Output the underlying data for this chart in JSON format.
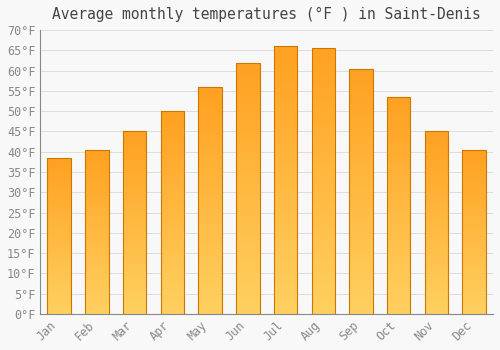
{
  "title": "Average monthly temperatures (°F ) in Saint-Denis",
  "months": [
    "Jan",
    "Feb",
    "Mar",
    "Apr",
    "May",
    "Jun",
    "Jul",
    "Aug",
    "Sep",
    "Oct",
    "Nov",
    "Dec"
  ],
  "values": [
    38.5,
    40.5,
    45.0,
    50.0,
    56.0,
    62.0,
    66.0,
    65.5,
    60.5,
    53.5,
    45.0,
    40.5
  ],
  "bar_color_bottom": "#FFD060",
  "bar_color_top": "#FFA020",
  "bar_edge_color": "#CC7700",
  "ylim": [
    0,
    70
  ],
  "ytick_step": 5,
  "background_color": "#f8f8f8",
  "grid_color": "#dddddd",
  "title_fontsize": 10.5,
  "tick_fontsize": 8.5,
  "tick_color": "#888888",
  "title_color": "#444444"
}
